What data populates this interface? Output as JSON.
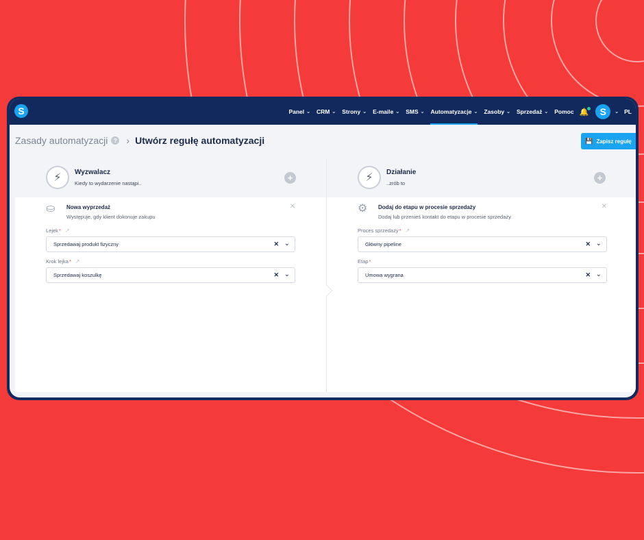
{
  "colors": {
    "background": "#f53a3a",
    "nav_bg": "#12295e",
    "accent": "#1aa3f0",
    "text_dark": "#1c2b4a"
  },
  "topnav": {
    "logo": "S",
    "items": [
      {
        "label": "Panel",
        "has_menu": true
      },
      {
        "label": "CRM",
        "has_menu": true
      },
      {
        "label": "Strony",
        "has_menu": true
      },
      {
        "label": "E-maile",
        "has_menu": true
      },
      {
        "label": "SMS",
        "has_menu": true
      },
      {
        "label": "Automatyzacje",
        "has_menu": true,
        "active": true
      },
      {
        "label": "Zasoby",
        "has_menu": true
      },
      {
        "label": "Sprzedaż",
        "has_menu": true
      },
      {
        "label": "Pomoc",
        "has_menu": false
      }
    ],
    "notification_icon": "bell-icon",
    "avatar": "S",
    "language": "PL"
  },
  "header": {
    "breadcrumb_parent": "Zasady automatyzacji",
    "title": "Utwórz regułę automatyzacji",
    "save_label": "Zapisz regułę"
  },
  "trigger": {
    "title": "Wyzwalacz",
    "subtitle": "Kiedy to wydarzenie nastąpi..",
    "item_title": "Nowa wyprzedaż",
    "item_subtitle": "Występuje, gdy klient dokonuje zakupu",
    "fields": [
      {
        "label": "Lejek",
        "required": true,
        "value": "Sprzedawaj produkt fizyczny"
      },
      {
        "label": "Krok lejka",
        "required": true,
        "value": "Sprzedawaj koszulkę"
      }
    ]
  },
  "action": {
    "title": "Działanie",
    "subtitle": "..zrób to",
    "item_title": "Dodaj do etapu w procesie sprzedaży",
    "item_subtitle": "Dodaj lub przenieś kontakt do etapu w procesie sprzedaży",
    "fields": [
      {
        "label": "Proces sprzedaży",
        "required": true,
        "value": "Główny pipeline"
      },
      {
        "label": "Etap",
        "required": true,
        "value": "Umowa wygrana"
      }
    ]
  }
}
